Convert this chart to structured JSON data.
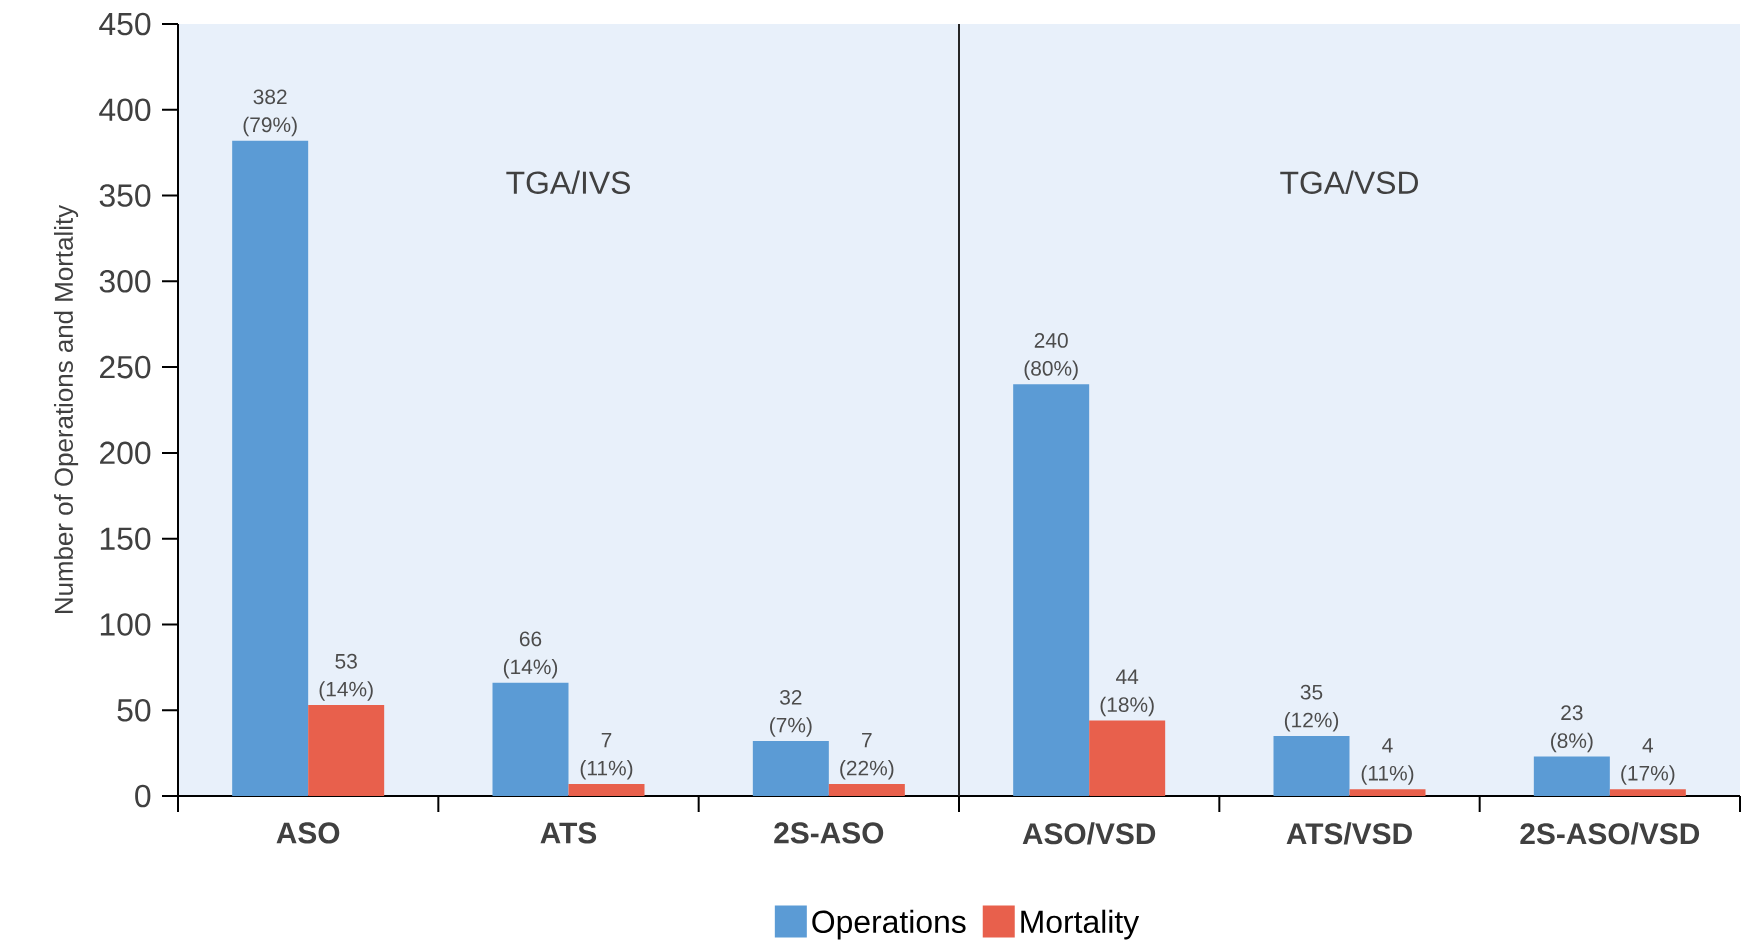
{
  "chart_data": {
    "type": "bar",
    "ylabel": "Number of Operations and Mortality",
    "categories": [
      "ASO",
      "ATS",
      "2S-ASO",
      "ASO/VSD",
      "ATS/VSD",
      "2S-ASO/VSD"
    ],
    "series": [
      {
        "name": "Operations",
        "color": "#5b9bd5",
        "values": [
          382,
          66,
          32,
          240,
          35,
          23
        ],
        "value_labels": [
          "382 (79%)",
          "66 (14%)",
          "32 (7%)",
          "240 (80%)",
          "35 (12%)",
          "23 (8%)"
        ]
      },
      {
        "name": "Mortality",
        "color": "#e8604c",
        "values": [
          53,
          7,
          7,
          44,
          4,
          4
        ],
        "value_labels": [
          "53 (14%)",
          "7 (11%)",
          "7 (22%)",
          "44 (18%)",
          "4 (11%)",
          "4 (17%)"
        ]
      }
    ],
    "ylim": [
      0,
      450
    ],
    "yticks": [
      0,
      50,
      100,
      150,
      200,
      250,
      300,
      350,
      400,
      450
    ],
    "annotations": [
      "TGA/IVS",
      "TGA/VSD"
    ],
    "legend": "bottom",
    "grid": false
  }
}
